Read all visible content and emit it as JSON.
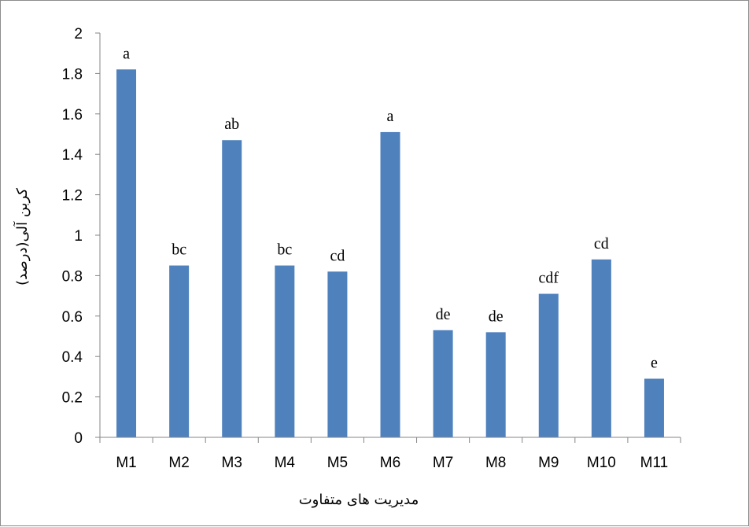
{
  "chart_data": {
    "type": "bar",
    "title": "",
    "xlabel": "مدیریت های متفاوت",
    "ylabel": "کربن آلی(درصد)",
    "ylim": [
      0,
      2
    ],
    "ytick_step": 0.2,
    "yticks": [
      "0",
      "0.2",
      "0.4",
      "0.6",
      "0.8",
      "1",
      "1.2",
      "1.4",
      "1.6",
      "1.8",
      "2"
    ],
    "categories": [
      "M1",
      "M2",
      "M3",
      "M4",
      "M5",
      "M6",
      "M7",
      "M8",
      "M9",
      "M10",
      "M11"
    ],
    "values": [
      1.82,
      0.85,
      1.47,
      0.85,
      0.82,
      1.51,
      0.53,
      0.52,
      0.71,
      0.88,
      0.29
    ],
    "data_labels": [
      "a",
      "bc",
      "ab",
      "bc",
      "cd",
      "a",
      "de",
      "de",
      "cdf",
      "cd",
      "e"
    ],
    "bar_color": "#4f81bd",
    "grid": false,
    "legend": "none"
  }
}
